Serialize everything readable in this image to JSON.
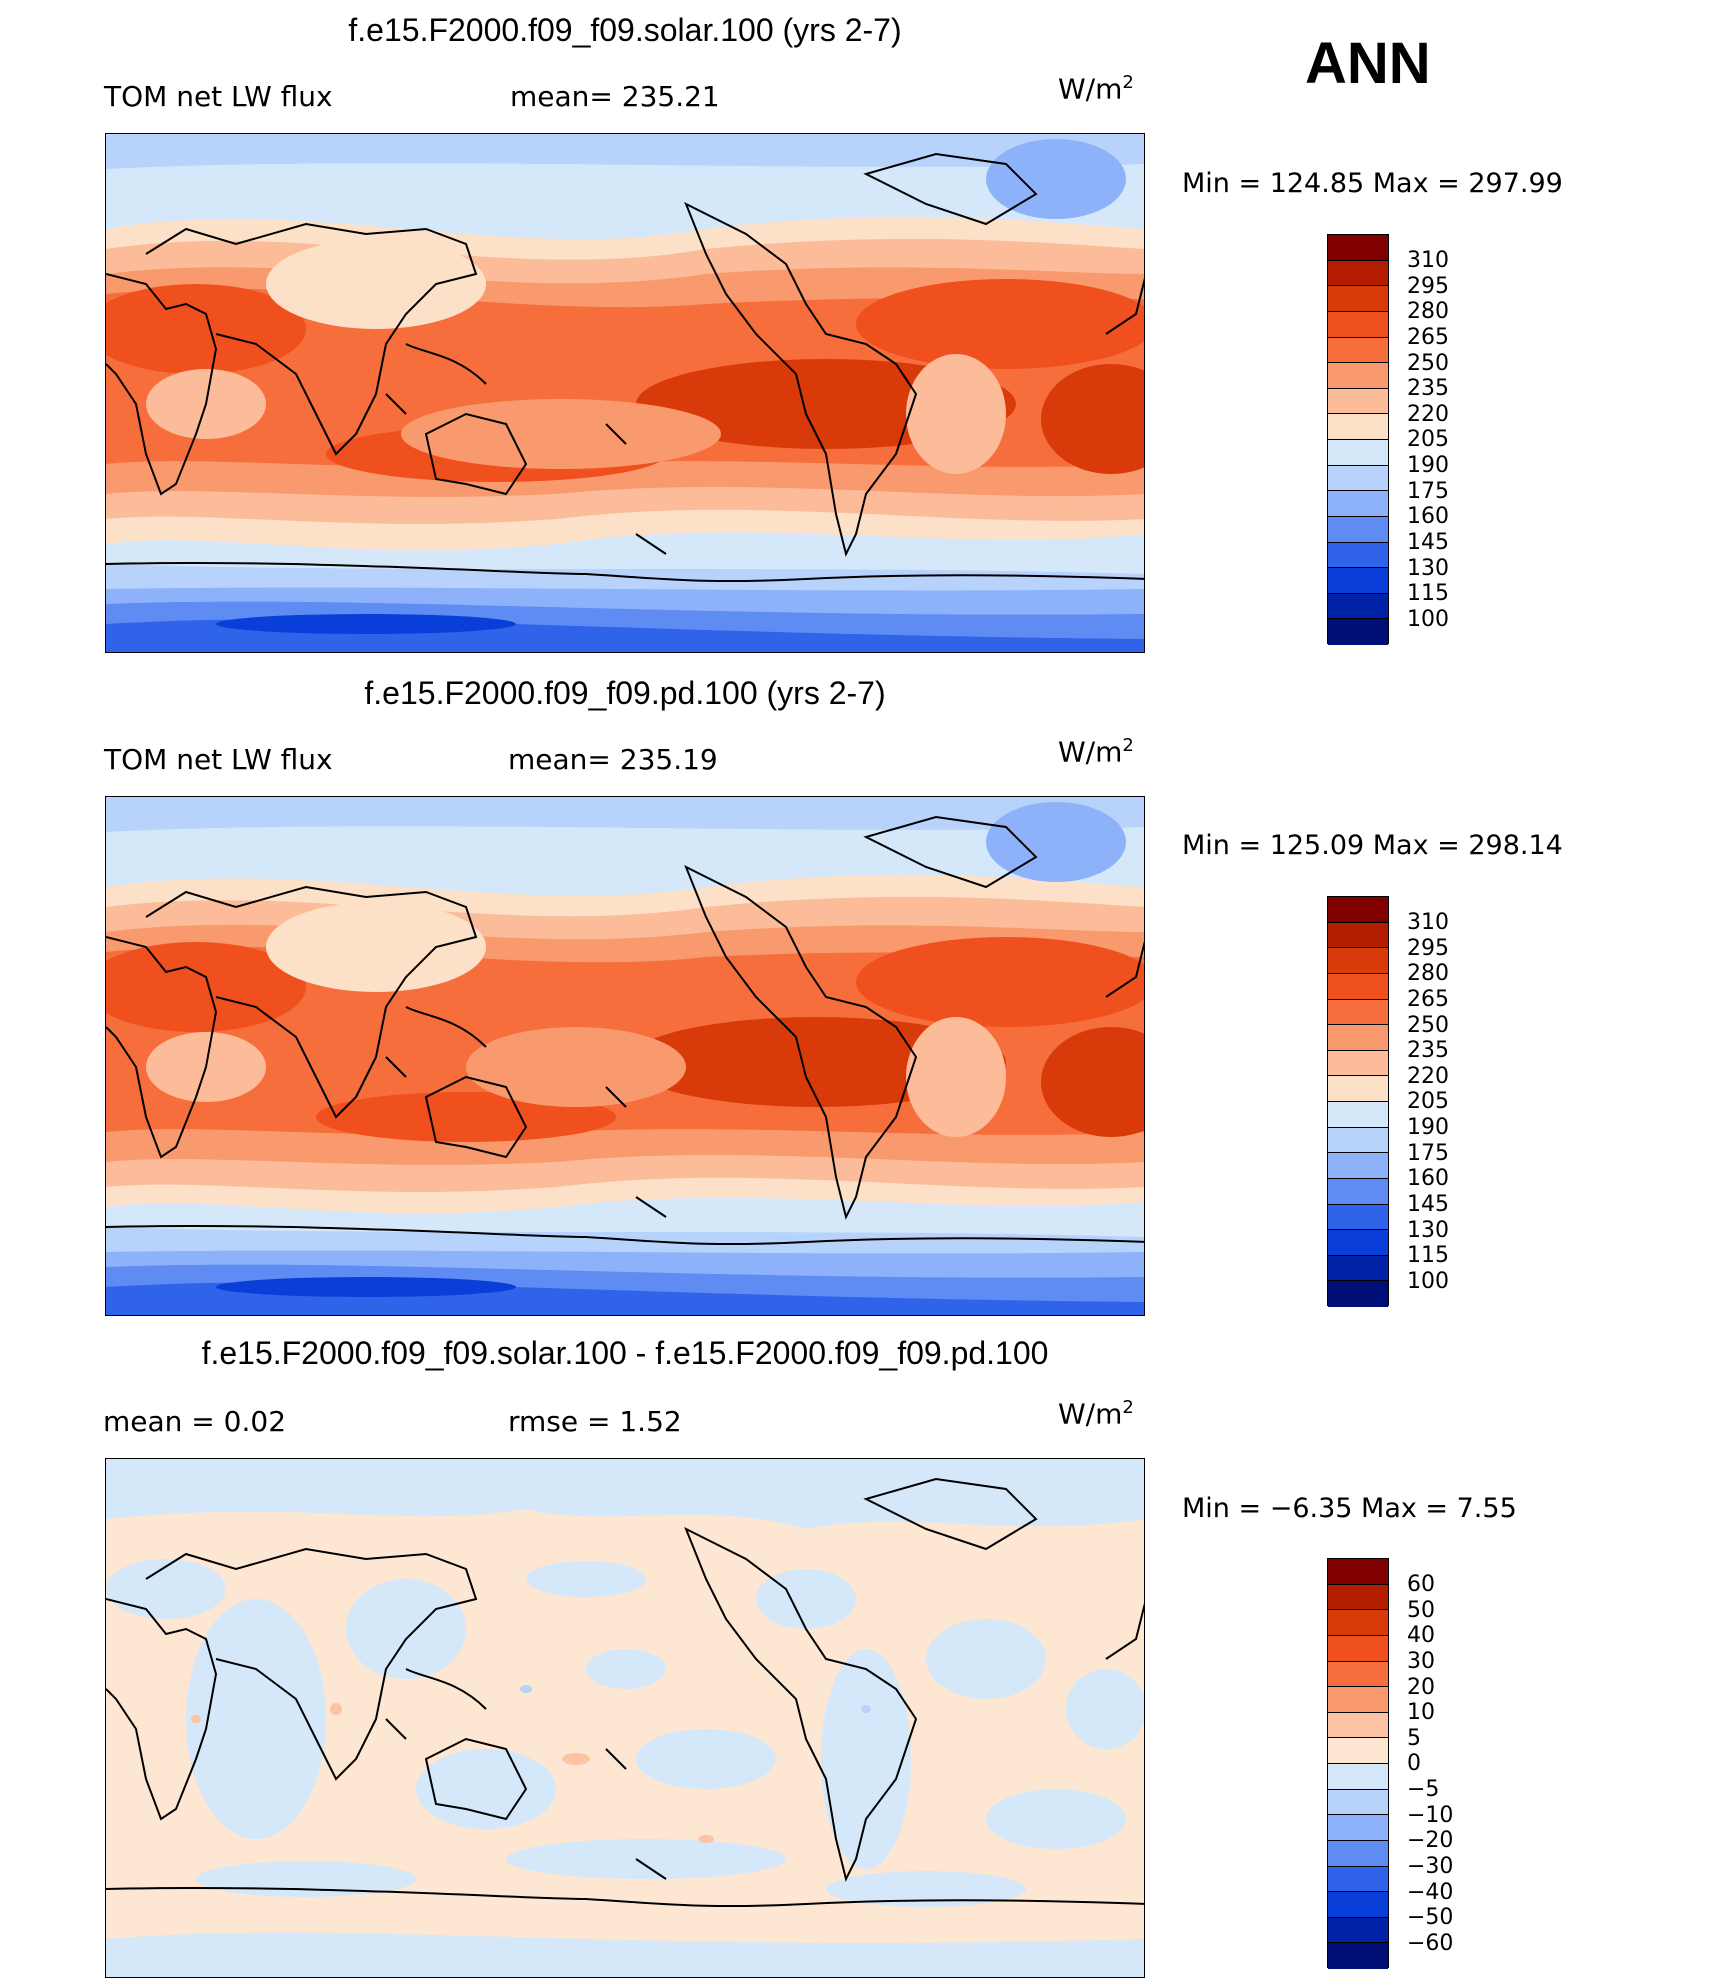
{
  "header": {
    "season": "ANN"
  },
  "panels": [
    {
      "title": "f.e15.F2000.f09_f09.solar.100 (yrs 2-7)",
      "left_label": "TOM net LW flux",
      "mid_label": "mean= 235.21",
      "units": "W/m",
      "units_sup": "2",
      "minmax": "Min  =  124.85  Max  =  297.99",
      "scale": "abs"
    },
    {
      "title": "f.e15.F2000.f09_f09.pd.100 (yrs 2-7)",
      "left_label": "TOM net LW flux",
      "mid_label": "mean= 235.19",
      "units": "W/m",
      "units_sup": "2",
      "minmax": "Min  =  125.09  Max  =  298.14",
      "scale": "abs"
    },
    {
      "title": "f.e15.F2000.f09_f09.solar.100 - f.e15.F2000.f09_f09.pd.100",
      "left_label": "mean  =      0.02",
      "mid_label": "rmse  =      1.52",
      "units": "W/m",
      "units_sup": "2",
      "minmax": "Min  =    −6.35  Max  =      7.55",
      "scale": "diff"
    }
  ],
  "scales": {
    "abs": {
      "colors": [
        "#800000",
        "#b41e00",
        "#d83a0a",
        "#f0501e",
        "#f56e3c",
        "#f99a6e",
        "#fcbc9a",
        "#fde0c8",
        "#d4e8fa",
        "#b8d3fb",
        "#8eb2fa",
        "#5f8cf2",
        "#2f63ea",
        "#0a3ed8",
        "#0022a6",
        "#000e78"
      ],
      "labels": [
        "310",
        "295",
        "280",
        "265",
        "250",
        "235",
        "220",
        "205",
        "190",
        "175",
        "160",
        "145",
        "130",
        "115",
        "100"
      ]
    },
    "diff": {
      "colors": [
        "#800000",
        "#b41e00",
        "#d83a0a",
        "#f0501e",
        "#f56e3c",
        "#f99a6e",
        "#fcc3a4",
        "#fde6d2",
        "#d4e8fa",
        "#b8d3fb",
        "#8eb2fa",
        "#5f8cf2",
        "#2f63ea",
        "#0a3ed8",
        "#0022a6",
        "#000e78"
      ],
      "labels": [
        "60",
        "50",
        "40",
        "30",
        "20",
        "10",
        "5",
        "0",
        "−5",
        "−10",
        "−20",
        "−30",
        "−40",
        "−50",
        "−60"
      ]
    }
  }
}
